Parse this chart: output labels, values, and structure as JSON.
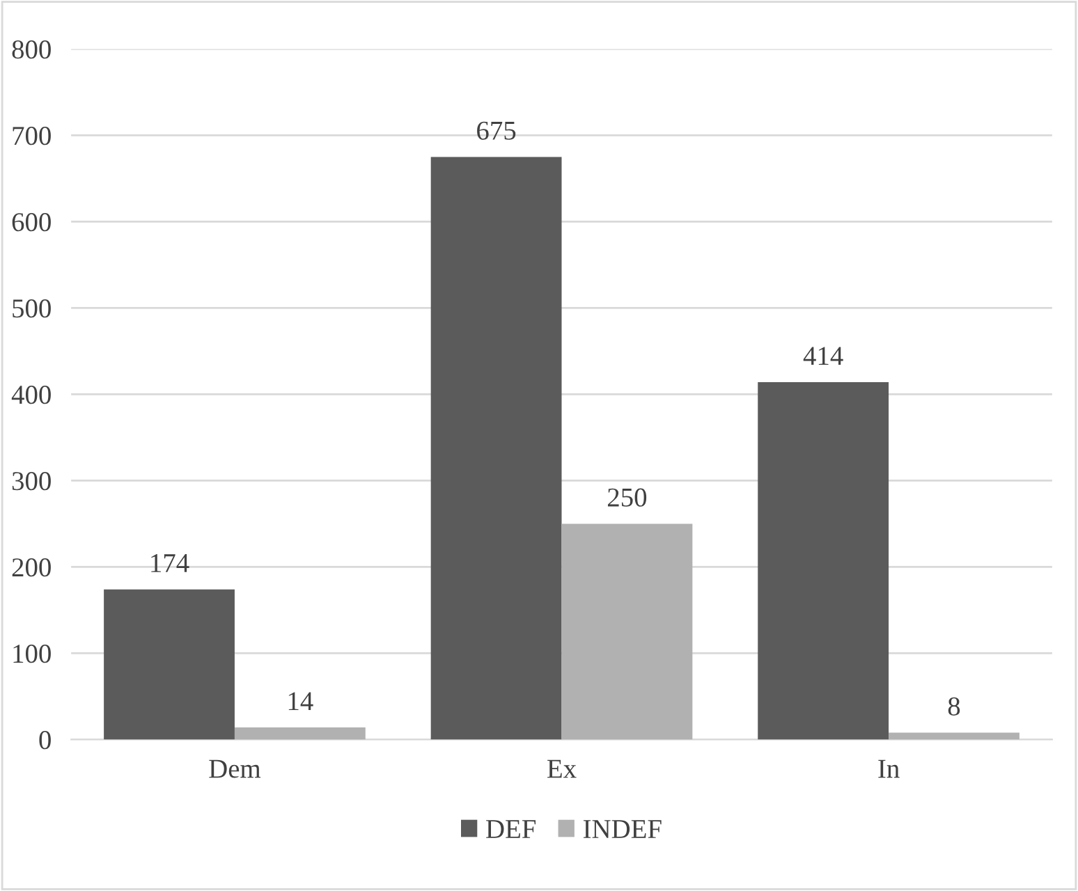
{
  "chart_data": {
    "type": "bar",
    "categories": [
      "Dem",
      "Ex",
      "In"
    ],
    "series": [
      {
        "name": "DEF",
        "color": "#5b5b5b",
        "values": [
          174,
          675,
          414
        ]
      },
      {
        "name": "INDEF",
        "color": "#b1b1b1",
        "values": [
          14,
          250,
          8
        ]
      }
    ],
    "ylim": [
      0,
      800
    ],
    "yticks": [
      0,
      100,
      200,
      300,
      400,
      500,
      600,
      700,
      800
    ],
    "grid": "y",
    "legend": "bottom",
    "data_labels": true
  }
}
